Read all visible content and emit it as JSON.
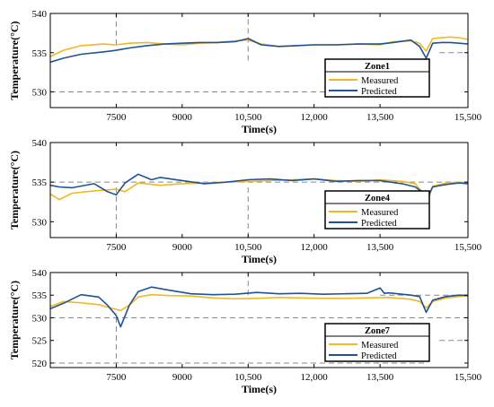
{
  "colors": {
    "measured": "#f2b822",
    "predicted": "#1f5296",
    "guide": "#888888"
  },
  "chart_data": [
    {
      "type": "line",
      "title": "Zone1",
      "xlabel": "Time(s)",
      "ylabel": "Temperature(°C)",
      "xlim": [
        6000,
        15500
      ],
      "ylim": [
        528,
        540
      ],
      "xticks": [
        7500,
        9000,
        10500,
        12000,
        13500,
        15500
      ],
      "xtick_labels": [
        "7500",
        "9000",
        "10,500",
        "12,000",
        "13,500",
        "15,500"
      ],
      "yticks": [
        530,
        535,
        540
      ],
      "ytick_labels": [
        "530",
        "535",
        "540"
      ],
      "grid": false,
      "legend_position": "bottom-right",
      "series": [
        {
          "name": "Measured",
          "x": [
            6000,
            6300,
            6700,
            7200,
            7500,
            7800,
            8200,
            8600,
            9000,
            9400,
            9800,
            10200,
            10500,
            10800,
            11200,
            11600,
            12000,
            12500,
            13000,
            13500,
            13800,
            14200,
            14400,
            14550,
            14700,
            14900,
            15100,
            15300,
            15500
          ],
          "y": [
            534.5,
            535.3,
            535.9,
            536.1,
            536.0,
            536.2,
            536.3,
            536.1,
            536.0,
            536.2,
            536.3,
            536.5,
            536.6,
            536.1,
            535.8,
            535.9,
            536.0,
            536.0,
            536.1,
            536.0,
            536.4,
            536.5,
            536.2,
            535.2,
            536.8,
            536.9,
            537.0,
            536.9,
            536.7
          ]
        },
        {
          "name": "Predicted",
          "x": [
            6000,
            6300,
            6700,
            7200,
            7500,
            7800,
            8200,
            8600,
            9000,
            9400,
            9800,
            10200,
            10500,
            10800,
            11200,
            11600,
            12000,
            12500,
            13000,
            13500,
            13800,
            14200,
            14400,
            14550,
            14700,
            14900,
            15100,
            15300,
            15500
          ],
          "y": [
            533.8,
            534.3,
            534.8,
            535.1,
            535.3,
            535.6,
            535.9,
            536.1,
            536.2,
            536.3,
            536.3,
            536.4,
            536.8,
            536.0,
            535.8,
            535.9,
            536.0,
            536.0,
            536.1,
            536.1,
            536.3,
            536.6,
            535.8,
            534.3,
            536.2,
            536.3,
            536.3,
            536.2,
            536.1
          ]
        }
      ],
      "guides": {
        "v": [
          {
            "x": 7500,
            "y": [
              536,
              540
            ]
          },
          {
            "x": 10500,
            "y": [
              534,
              540
            ]
          }
        ],
        "h": [
          {
            "y": 530,
            "x": [
              6000,
              14500
            ]
          },
          {
            "y": 535,
            "x": [
              14850,
              15500
            ]
          }
        ]
      }
    },
    {
      "type": "line",
      "title": "Zone4",
      "xlabel": "Time(s)",
      "ylabel": "Temperature(°C)",
      "xlim": [
        6000,
        15500
      ],
      "ylim": [
        528,
        540
      ],
      "xticks": [
        7500,
        9000,
        10500,
        12000,
        13500,
        15500
      ],
      "xtick_labels": [
        "7500",
        "9000",
        "10,500",
        "12,000",
        "13,500",
        "15,500"
      ],
      "yticks": [
        530,
        535,
        540
      ],
      "ytick_labels": [
        "530",
        "535",
        "540"
      ],
      "grid": false,
      "legend_position": "bottom-right",
      "series": [
        {
          "name": "Measured",
          "x": [
            6000,
            6200,
            6500,
            7000,
            7500,
            7700,
            8000,
            8500,
            9000,
            9500,
            10000,
            10500,
            11000,
            11500,
            12000,
            12500,
            13000,
            13500,
            14000,
            14300,
            14450,
            14550,
            14700,
            15000,
            15300,
            15500
          ],
          "y": [
            533.5,
            532.8,
            533.6,
            533.9,
            534.1,
            533.8,
            534.9,
            534.6,
            534.8,
            534.9,
            535.0,
            535.1,
            535.2,
            535.3,
            535.4,
            535.2,
            535.1,
            535.3,
            535.1,
            534.8,
            533.8,
            532.0,
            534.5,
            534.9,
            535.0,
            534.9
          ]
        },
        {
          "name": "Predicted",
          "x": [
            6000,
            6200,
            6500,
            7000,
            7300,
            7500,
            7700,
            8000,
            8300,
            8500,
            9000,
            9500,
            10000,
            10500,
            11000,
            11500,
            12000,
            12500,
            13000,
            13500,
            14000,
            14300,
            14450,
            14550,
            14700,
            15000,
            15300,
            15500
          ],
          "y": [
            534.6,
            534.4,
            534.3,
            534.8,
            533.8,
            533.4,
            534.9,
            536.0,
            535.3,
            535.6,
            535.2,
            534.8,
            535.0,
            535.3,
            535.4,
            535.2,
            535.4,
            535.1,
            535.2,
            535.2,
            534.8,
            534.4,
            533.8,
            532.8,
            534.4,
            534.7,
            534.9,
            534.8
          ]
        }
      ],
      "guides": {
        "v": [
          {
            "x": 7500,
            "y": [
              528,
              534.5
            ]
          },
          {
            "x": 10500,
            "y": [
              528,
              534.5
            ]
          }
        ],
        "h": [
          {
            "y": 535,
            "x": [
              6000,
              15500
            ]
          }
        ]
      }
    },
    {
      "type": "line",
      "title": "Zone7",
      "xlabel": "Time(s)",
      "ylabel": "Temperature(°C)",
      "xlim": [
        6000,
        15500
      ],
      "ylim": [
        519,
        540
      ],
      "xticks": [
        7500,
        9000,
        10500,
        12000,
        13500,
        15500
      ],
      "xtick_labels": [
        "7500",
        "9000",
        "10,500",
        "12,000",
        "13,500",
        "15,500"
      ],
      "yticks": [
        520,
        525,
        530,
        535,
        540
      ],
      "ytick_labels": [
        "520",
        "525",
        "530",
        "535",
        "540"
      ],
      "grid": false,
      "legend_position": "bottom-right",
      "series": [
        {
          "name": "Measured",
          "x": [
            6000,
            6300,
            6700,
            7100,
            7400,
            7600,
            7800,
            8000,
            8300,
            8700,
            9200,
            9700,
            10200,
            10700,
            11200,
            11700,
            12200,
            12700,
            13200,
            13700,
            14200,
            14400,
            14550,
            14700,
            15000,
            15300,
            15500
          ],
          "y": [
            532.5,
            533.6,
            533.3,
            532.9,
            532.1,
            531.6,
            532.8,
            534.6,
            535.1,
            534.9,
            534.8,
            534.4,
            534.2,
            534.3,
            534.5,
            534.4,
            534.3,
            534.3,
            534.4,
            534.5,
            534.1,
            533.6,
            532.2,
            533.6,
            534.4,
            534.7,
            534.9
          ]
        },
        {
          "name": "Predicted",
          "x": [
            6000,
            6300,
            6700,
            7100,
            7300,
            7500,
            7600,
            7800,
            8000,
            8300,
            8700,
            9200,
            9700,
            10200,
            10700,
            11200,
            11700,
            12200,
            12700,
            13200,
            13500,
            13600,
            13700,
            14200,
            14400,
            14550,
            14700,
            15000,
            15300,
            15500
          ],
          "y": [
            532.0,
            533.2,
            535.1,
            534.6,
            532.8,
            530.5,
            528.0,
            532.8,
            535.8,
            536.8,
            536.1,
            535.3,
            535.1,
            535.2,
            535.6,
            535.3,
            535.4,
            535.2,
            535.3,
            535.4,
            536.6,
            535.4,
            535.5,
            535.0,
            534.7,
            531.2,
            533.9,
            534.7,
            535.0,
            534.9
          ]
        }
      ],
      "guides": {
        "v": [
          {
            "x": 7500,
            "y": [
              519,
              531
            ]
          },
          {
            "x": 10500,
            "y": [
              535,
              540
            ]
          }
        ],
        "h": [
          {
            "y": 530,
            "x": [
              6000,
              15500
            ]
          },
          {
            "y": 535,
            "x": [
              13500,
              15500
            ]
          },
          {
            "y": 525,
            "x": [
              14850,
              15500
            ]
          },
          {
            "y": 520,
            "x": [
              6000,
              14500
            ]
          }
        ]
      }
    }
  ]
}
